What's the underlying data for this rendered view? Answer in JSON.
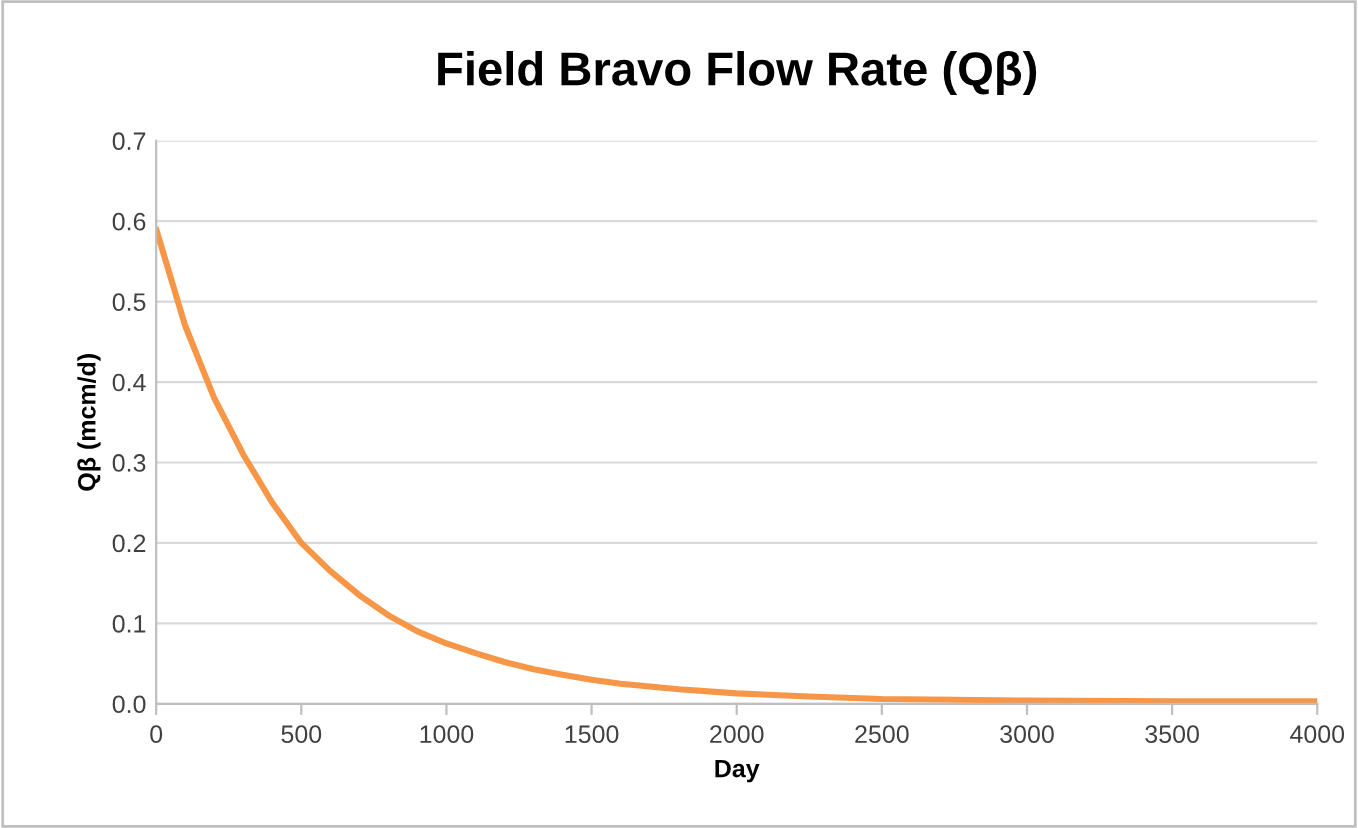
{
  "chart_data": {
    "type": "line",
    "title": "Field Bravo Flow Rate (Qβ)",
    "xlabel": "Day",
    "ylabel": "Qβ (mcm/d)",
    "series": [
      {
        "color": "#f79646",
        "x": [
          0,
          100,
          200,
          300,
          400,
          500,
          600,
          700,
          800,
          900,
          1000,
          1100,
          1200,
          1300,
          1400,
          1500,
          1600,
          1800,
          2000,
          2250,
          2500,
          2750,
          3000,
          3500,
          4000
        ],
        "values": [
          0.59,
          0.47,
          0.38,
          0.31,
          0.25,
          0.2,
          0.165,
          0.135,
          0.11,
          0.09,
          0.075,
          0.063,
          0.052,
          0.043,
          0.036,
          0.03,
          0.025,
          0.018,
          0.013,
          0.009,
          0.006,
          0.005,
          0.004,
          0.003,
          0.003
        ]
      }
    ],
    "xlim": [
      0,
      4000
    ],
    "xticks": [
      0,
      500,
      1000,
      1500,
      2000,
      2500,
      3000,
      3500,
      4000
    ],
    "ylim": [
      0,
      0.7
    ],
    "yticks": [
      {
        "value": 0,
        "label": "0.0"
      },
      0.1,
      0.2,
      0.3,
      0.4,
      0.5,
      0.6,
      0.7
    ],
    "grid": "y",
    "marker": "none",
    "line_style": "solid"
  }
}
